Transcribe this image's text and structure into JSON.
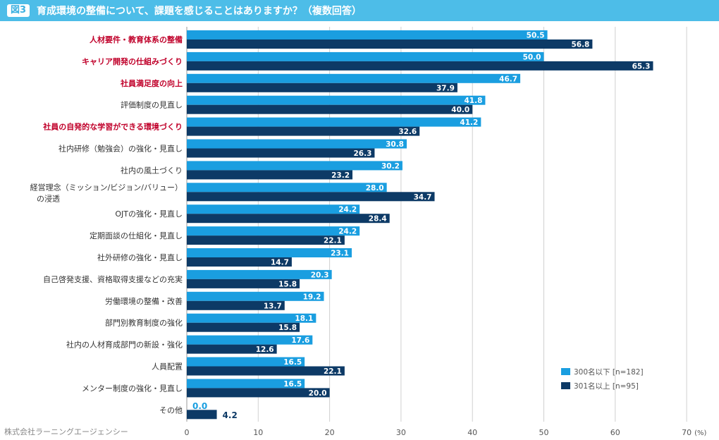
{
  "header": {
    "figure_label": "図3",
    "title": "育成環境の整備について、課題を感じることはありますか？（複数回答）"
  },
  "source": "株式会社ラーニングエージェンシー",
  "colors": {
    "series1": "#1a9ee0",
    "series2": "#0d3a66",
    "highlight_label": "#c0002a",
    "normal_label": "#333333",
    "grid": "#d0d0d0"
  },
  "chart_data": {
    "type": "bar",
    "orientation": "horizontal",
    "title": "育成環境の整備について、課題を感じることはありますか？（複数回答）",
    "xlim": [
      0,
      70
    ],
    "xticks": [
      "0",
      "10",
      "20",
      "30",
      "40",
      "50",
      "60",
      "70"
    ],
    "x_unit": "(%)",
    "categories": [
      {
        "label": [
          "人材要件・教育体系の整備"
        ],
        "highlight": true
      },
      {
        "label": [
          "キャリア開発の仕組みづくり"
        ],
        "highlight": true
      },
      {
        "label": [
          "社員満足度の向上"
        ],
        "highlight": true
      },
      {
        "label": [
          "評価制度の見直し"
        ],
        "highlight": false
      },
      {
        "label": [
          "社員の自発的な学習ができる環境づくり"
        ],
        "highlight": true
      },
      {
        "label": [
          "社内研修（勉強会）の強化・見直し"
        ],
        "highlight": false
      },
      {
        "label": [
          "社内の風土づくり"
        ],
        "highlight": false
      },
      {
        "label": [
          "経営理念（ミッション/ビジョン/バリュー）",
          "の浸透"
        ],
        "highlight": false
      },
      {
        "label": [
          "OJTの強化・見直し"
        ],
        "highlight": false
      },
      {
        "label": [
          "定期面談の仕組化・見直し"
        ],
        "highlight": false
      },
      {
        "label": [
          "社外研修の強化・見直し"
        ],
        "highlight": false
      },
      {
        "label": [
          "自己啓発支援、資格取得支援などの充実"
        ],
        "highlight": false
      },
      {
        "label": [
          "労働環境の整備・改善"
        ],
        "highlight": false
      },
      {
        "label": [
          "部門別教育制度の強化"
        ],
        "highlight": false
      },
      {
        "label": [
          "社内の人材育成部門の新設・強化"
        ],
        "highlight": false
      },
      {
        "label": [
          "人員配置"
        ],
        "highlight": false
      },
      {
        "label": [
          "メンター制度の強化・見直し"
        ],
        "highlight": false
      },
      {
        "label": [
          "その他"
        ],
        "highlight": false
      }
    ],
    "series": [
      {
        "name": "300名以下 [n=182]",
        "values": [
          50.5,
          50.0,
          46.7,
          41.8,
          41.2,
          30.8,
          30.2,
          28.0,
          24.2,
          24.2,
          23.1,
          20.3,
          19.2,
          18.1,
          17.6,
          16.5,
          16.5,
          0.0
        ]
      },
      {
        "name": "301名以上 [n=95]",
        "values": [
          56.8,
          65.3,
          37.9,
          40.0,
          32.6,
          26.3,
          23.2,
          34.7,
          28.4,
          22.1,
          14.7,
          15.8,
          13.7,
          15.8,
          12.6,
          22.1,
          20.0,
          4.2
        ]
      }
    ],
    "legend_position": "bottom-right"
  }
}
